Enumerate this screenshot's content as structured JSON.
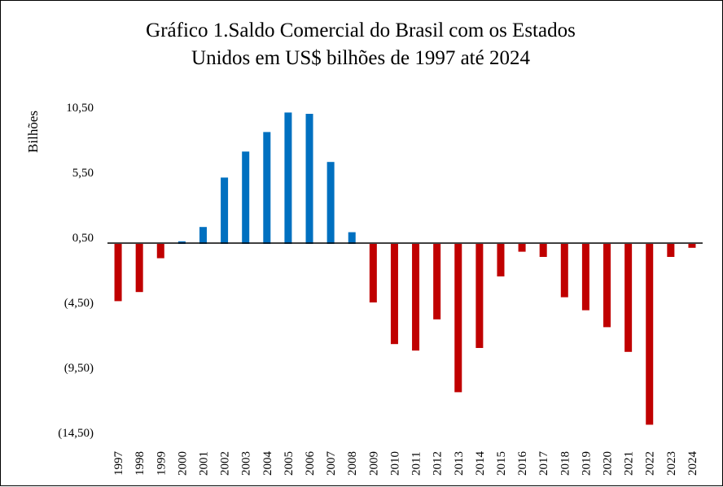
{
  "chart_data": {
    "type": "bar",
    "title_lines": [
      "Gráfico 1.Saldo Comercial do Brasil com os Estados",
      "Unidos em US$ bilhões de 1997 até 2024"
    ],
    "ylabel": "Bilhões",
    "xlabel": "",
    "ylim": [
      -14.5,
      10.5
    ],
    "y_ticks": [
      10.5,
      5.5,
      0.5,
      -4.5,
      -9.5,
      -14.5
    ],
    "y_tick_labels": [
      "10,50",
      "5,50",
      "0,50",
      "(4,50)",
      "(9,50)",
      "(14,50)"
    ],
    "grid": false,
    "legend": "none",
    "categories": [
      "1997",
      "1998",
      "1999",
      "2000",
      "2001",
      "2002",
      "2003",
      "2004",
      "2005",
      "2006",
      "2007",
      "2008",
      "2009",
      "2010",
      "2011",
      "2012",
      "2013",
      "2014",
      "2015",
      "2016",
      "2017",
      "2018",
      "2019",
      "2020",
      "2021",
      "2022",
      "2023",
      "2024"
    ],
    "values": [
      -4.4,
      -3.7,
      -1.1,
      0.2,
      1.3,
      5.1,
      7.1,
      8.6,
      10.1,
      10.0,
      6.3,
      0.9,
      -4.5,
      -7.7,
      -8.2,
      -5.8,
      -11.4,
      -8.0,
      -2.5,
      -0.6,
      -1.0,
      -4.1,
      -5.1,
      -6.4,
      -8.3,
      -13.9,
      -1.0,
      -0.3
    ],
    "colors": {
      "positive": "#0070C0",
      "negative": "#C00000",
      "axis": "#000000"
    }
  }
}
